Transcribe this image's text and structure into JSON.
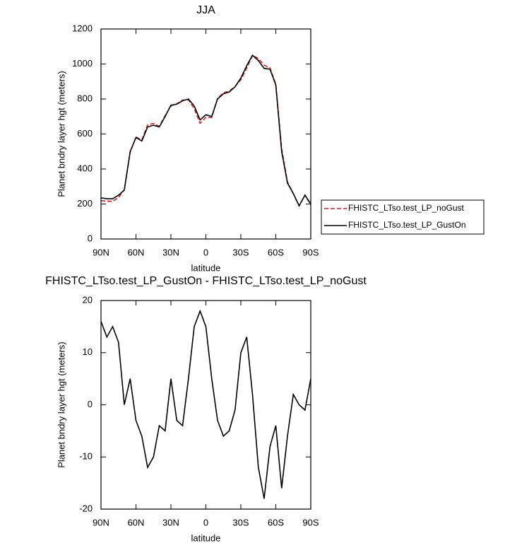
{
  "chart_data": [
    {
      "type": "line",
      "title": "JJA",
      "xlabel": "latitude",
      "ylabel": "Planet bndry layer hgt (meters)",
      "x": [
        90,
        85,
        80,
        75,
        70,
        65,
        60,
        55,
        50,
        45,
        40,
        35,
        30,
        25,
        20,
        15,
        10,
        5,
        0,
        -5,
        -10,
        -15,
        -20,
        -25,
        -30,
        -35,
        -40,
        -45,
        -50,
        -55,
        -60,
        -65,
        -70,
        -75,
        -80,
        -85,
        -90
      ],
      "xlim": [
        90,
        -90
      ],
      "xticks": [
        {
          "value": 90,
          "label": "90N"
        },
        {
          "value": 60,
          "label": "60N"
        },
        {
          "value": 30,
          "label": "30N"
        },
        0,
        {
          "value": -30,
          "label": "30S"
        },
        {
          "value": -60,
          "label": "60S"
        },
        {
          "value": -90,
          "label": "90S"
        }
      ],
      "ylim": [
        0,
        1200
      ],
      "yticks": [
        0,
        200,
        400,
        600,
        800,
        1000,
        1200
      ],
      "legend": "right",
      "series": [
        {
          "name": "FHISTC_LTso.test_LP_noGust",
          "color": "#e41a1c",
          "dash": "dashed",
          "values": [
            219,
            217,
            215,
            238,
            280,
            495,
            583,
            566,
            652,
            660,
            644,
            705,
            760,
            773,
            794,
            795,
            745,
            662,
            695,
            695,
            803,
            836,
            845,
            871,
            910,
            977,
            1048,
            1032,
            993,
            978,
            884,
            516,
            326,
            258,
            190,
            251,
            195
          ]
        },
        {
          "name": "FHISTC_LTso.test_LP_GustOn",
          "color": "#000000",
          "dash": "solid",
          "values": [
            235,
            230,
            230,
            250,
            280,
            500,
            580,
            560,
            640,
            650,
            640,
            700,
            765,
            770,
            790,
            800,
            760,
            680,
            710,
            700,
            800,
            830,
            840,
            870,
            920,
            990,
            1050,
            1020,
            975,
            970,
            880,
            500,
            320,
            260,
            190,
            250,
            200
          ]
        }
      ]
    },
    {
      "type": "line",
      "title": "FHISTC_LTso.test_LP_GustOn - FHISTC_LTso.test_LP_noGust",
      "xlabel": "latitude",
      "ylabel": "Planet bndry layer hgt (meters)",
      "x": [
        90,
        85,
        80,
        75,
        70,
        65,
        60,
        55,
        50,
        45,
        40,
        35,
        30,
        25,
        20,
        15,
        10,
        5,
        0,
        -5,
        -10,
        -15,
        -20,
        -25,
        -30,
        -35,
        -40,
        -45,
        -50,
        -55,
        -60,
        -65,
        -70,
        -75,
        -80,
        -85,
        -90
      ],
      "xlim": [
        90,
        -90
      ],
      "xticks": [
        {
          "value": 90,
          "label": "90N"
        },
        {
          "value": 60,
          "label": "60N"
        },
        {
          "value": 30,
          "label": "30N"
        },
        0,
        {
          "value": -30,
          "label": "30S"
        },
        {
          "value": -60,
          "label": "60S"
        },
        {
          "value": -90,
          "label": "90S"
        }
      ],
      "ylim": [
        -20,
        20
      ],
      "yticks": [
        -20,
        -10,
        0,
        10,
        20
      ],
      "series": [
        {
          "color": "#000000",
          "dash": "solid",
          "values": [
            16,
            13,
            15,
            12,
            0,
            5,
            -3,
            -6,
            -12,
            -10,
            -4,
            -5,
            5,
            -3,
            -4,
            5,
            15,
            18,
            15,
            5,
            -3,
            -6,
            -5,
            -1,
            10,
            13,
            2,
            -12,
            -18,
            -8,
            -4,
            -16,
            -6,
            2,
            0,
            -1,
            5
          ]
        }
      ]
    }
  ]
}
